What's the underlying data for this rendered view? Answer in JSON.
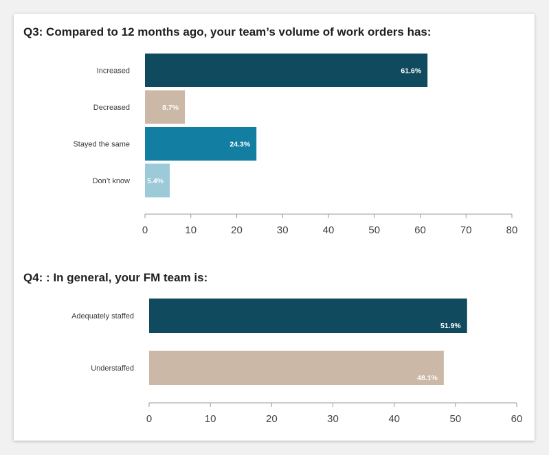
{
  "chart_data": [
    {
      "type": "bar",
      "orientation": "horizontal",
      "title": "Q3: Compared to 12 months ago, your team’s volume of work orders has:",
      "categories": [
        "Increased",
        "Decreased",
        "Stayed the same",
        "Don’t know"
      ],
      "values": [
        61.6,
        8.7,
        24.3,
        5.4
      ],
      "data_labels": [
        "61.6%",
        "8.7%",
        "24.3%",
        "5.4%"
      ],
      "colors": [
        "#0f4a5e",
        "#cbb8a7",
        "#127ea2",
        "#9ccad9"
      ],
      "xlim": [
        0,
        80
      ],
      "xticks": [
        0,
        10,
        20,
        30,
        40,
        50,
        60,
        70,
        80
      ],
      "grid": false
    },
    {
      "type": "bar",
      "orientation": "horizontal",
      "title": "Q4: : In general, your FM team is:",
      "categories": [
        "Adequately staffed",
        "Understaffed"
      ],
      "values": [
        51.9,
        48.1
      ],
      "data_labels": [
        "51.9%",
        "48.1%"
      ],
      "colors": [
        "#0f4a5e",
        "#cbb8a7"
      ],
      "xlim": [
        0,
        60
      ],
      "xticks": [
        0,
        10,
        20,
        30,
        40,
        50,
        60
      ],
      "grid": false
    }
  ]
}
